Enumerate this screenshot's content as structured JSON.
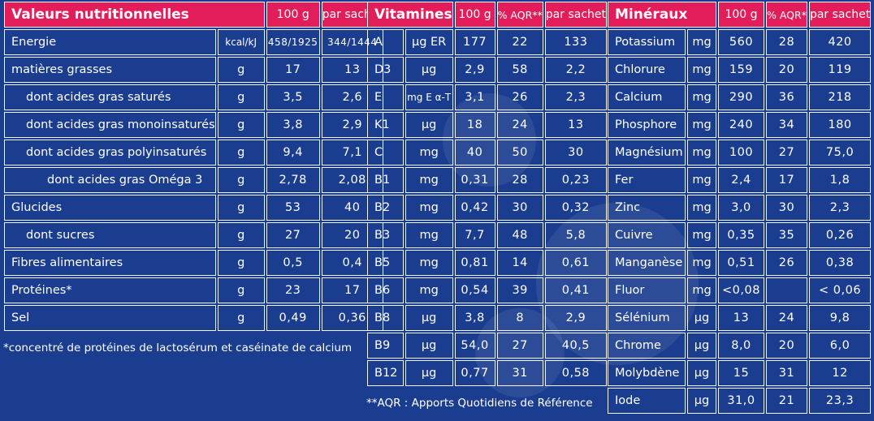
{
  "nutrition": {
    "title": "Valeurs nutritionnelles",
    "col_100g": "100 g",
    "col_sachet": "par sachet",
    "rows": [
      {
        "label": "Energie",
        "unit": "kcal/kJ",
        "v100": "458/1925",
        "vs": "344/1444",
        "indent": 0
      },
      {
        "label": "matières grasses",
        "unit": "g",
        "v100": "17",
        "vs": "13",
        "indent": 0
      },
      {
        "label": "dont acides gras saturés",
        "unit": "g",
        "v100": "3,5",
        "vs": "2,6",
        "indent": 1
      },
      {
        "label": "dont acides gras monoinsaturés",
        "unit": "g",
        "v100": "3,8",
        "vs": "2,9",
        "indent": 1
      },
      {
        "label": "dont acides gras polyinsaturés",
        "unit": "g",
        "v100": "9,4",
        "vs": "7,1",
        "indent": 1
      },
      {
        "label": "dont acides gras Oméga 3",
        "unit": "g",
        "v100": "2,78",
        "vs": "2,08",
        "indent": 2
      },
      {
        "label": "Glucides",
        "unit": "g",
        "v100": "53",
        "vs": "40",
        "indent": 0
      },
      {
        "label": "dont sucres",
        "unit": "g",
        "v100": "27",
        "vs": "20",
        "indent": 1
      },
      {
        "label": "Fibres alimentaires",
        "unit": "g",
        "v100": "0,5",
        "vs": "0,4",
        "indent": 0
      },
      {
        "label": "Protéines*",
        "unit": "g",
        "v100": "23",
        "vs": "17",
        "indent": 0
      },
      {
        "label": "Sel",
        "unit": "g",
        "v100": "0,49",
        "vs": "0,36",
        "indent": 0
      }
    ],
    "footnote": "*concentré de protéines de lactosérum et caséinate de calcium"
  },
  "vitamins": {
    "title": "Vitamines",
    "col_100g": "100 g",
    "col_aqr": "% AQR**",
    "col_sachet": "par sachet",
    "rows": [
      {
        "label": "A",
        "unit": "µg ER",
        "v100": "177",
        "aqr": "22",
        "vs": "133"
      },
      {
        "label": "D3",
        "unit": "µg",
        "v100": "2,9",
        "aqr": "58",
        "vs": "2,2"
      },
      {
        "label": "E",
        "unit": "mg E α-T",
        "v100": "3,1",
        "aqr": "26",
        "vs": "2,3"
      },
      {
        "label": "K1",
        "unit": "µg",
        "v100": "18",
        "aqr": "24",
        "vs": "13"
      },
      {
        "label": "C",
        "unit": "mg",
        "v100": "40",
        "aqr": "50",
        "vs": "30"
      },
      {
        "label": "B1",
        "unit": "mg",
        "v100": "0,31",
        "aqr": "28",
        "vs": "0,23"
      },
      {
        "label": "B2",
        "unit": "mg",
        "v100": "0,42",
        "aqr": "30",
        "vs": "0,32"
      },
      {
        "label": "B3",
        "unit": "mg",
        "v100": "7,7",
        "aqr": "48",
        "vs": "5,8"
      },
      {
        "label": "B5",
        "unit": "mg",
        "v100": "0,81",
        "aqr": "14",
        "vs": "0,61"
      },
      {
        "label": "B6",
        "unit": "mg",
        "v100": "0,54",
        "aqr": "39",
        "vs": "0,41"
      },
      {
        "label": "B8",
        "unit": "µg",
        "v100": "3,8",
        "aqr": "8",
        "vs": "2,9"
      },
      {
        "label": "B9",
        "unit": "µg",
        "v100": "54,0",
        "aqr": "27",
        "vs": "40,5"
      },
      {
        "label": "B12",
        "unit": "µg",
        "v100": "0,77",
        "aqr": "31",
        "vs": "0,58"
      }
    ],
    "footnote": "**AQR : Apports Quotidiens de Référence"
  },
  "minerals": {
    "title": "Minéraux",
    "col_100g": "100 g",
    "col_aqr": "% AQR*",
    "col_sachet": "par sachet",
    "rows": [
      {
        "label": "Potassium",
        "unit": "mg",
        "v100": "560",
        "aqr": "28",
        "vs": "420"
      },
      {
        "label": "Chlorure",
        "unit": "mg",
        "v100": "159",
        "aqr": "20",
        "vs": "119"
      },
      {
        "label": "Calcium",
        "unit": "mg",
        "v100": "290",
        "aqr": "36",
        "vs": "218"
      },
      {
        "label": "Phosphore",
        "unit": "mg",
        "v100": "240",
        "aqr": "34",
        "vs": "180"
      },
      {
        "label": "Magnésium",
        "unit": "mg",
        "v100": "100",
        "aqr": "27",
        "vs": "75,0"
      },
      {
        "label": "Fer",
        "unit": "mg",
        "v100": "2,4",
        "aqr": "17",
        "vs": "1,8"
      },
      {
        "label": "Zinc",
        "unit": "mg",
        "v100": "3,0",
        "aqr": "30",
        "vs": "2,3"
      },
      {
        "label": "Cuivre",
        "unit": "mg",
        "v100": "0,35",
        "aqr": "35",
        "vs": "0,26"
      },
      {
        "label": "Manganèse",
        "unit": "mg",
        "v100": "0,51",
        "aqr": "26",
        "vs": "0,38"
      },
      {
        "label": "Fluor",
        "unit": "mg",
        "v100": "<0,08",
        "aqr": "",
        "vs": "< 0,06"
      },
      {
        "label": "Sélénium",
        "unit": "µg",
        "v100": "13",
        "aqr": "24",
        "vs": "9,8"
      },
      {
        "label": "Chrome",
        "unit": "µg",
        "v100": "8,0",
        "aqr": "20",
        "vs": "6,0"
      },
      {
        "label": "Molybdène",
        "unit": "µg",
        "v100": "15",
        "aqr": "31",
        "vs": "12"
      },
      {
        "label": "Iode",
        "unit": "µg",
        "v100": "31,0",
        "aqr": "21",
        "vs": "23,3"
      }
    ]
  },
  "colors": {
    "background": "#1b3d8f",
    "header": "#e31d59",
    "lines": "#ffffff"
  }
}
